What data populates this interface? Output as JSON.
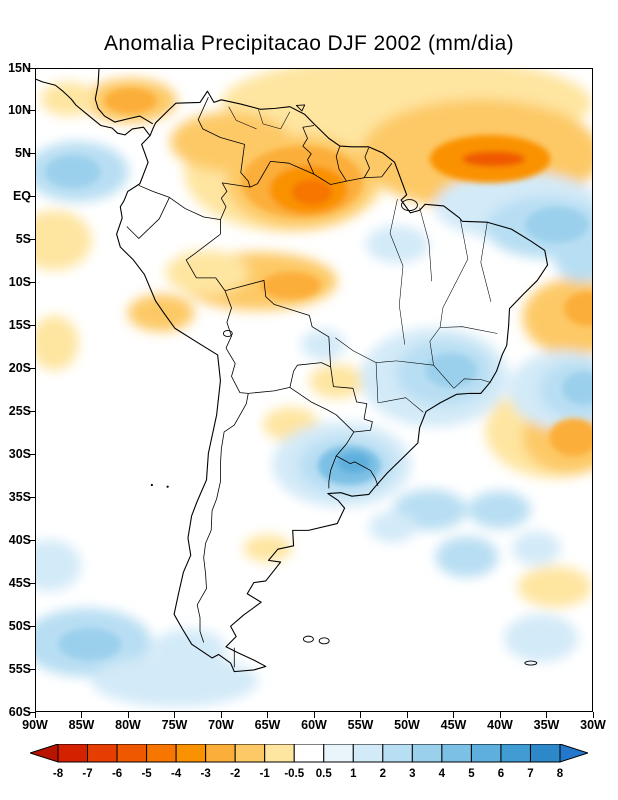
{
  "chart_data": {
    "type": "heatmap",
    "subtype": "filled-contour-anomaly-map",
    "title": "Anomalia Precipitacao DJF 2002 (mm/dia)",
    "variable": "Precipitation anomaly",
    "season": "DJF 2002",
    "units": "mm/dia",
    "region": "South America and adjacent oceans",
    "grid": false,
    "x_axis": {
      "ticks": [
        "90W",
        "85W",
        "80W",
        "75W",
        "70W",
        "65W",
        "60W",
        "55W",
        "50W",
        "45W",
        "40W",
        "35W",
        "30W"
      ],
      "range_deg_lon": [
        -90,
        -30
      ]
    },
    "y_axis": {
      "ticks": [
        "15N",
        "10N",
        "5N",
        "EQ",
        "5S",
        "10S",
        "15S",
        "20S",
        "25S",
        "30S",
        "35S",
        "40S",
        "45S",
        "50S",
        "55S",
        "60S"
      ],
      "range_deg_lat": [
        15,
        -60
      ]
    },
    "colorbar": {
      "tick_labels": [
        "-8",
        "-7",
        "-6",
        "-5",
        "-4",
        "-3",
        "-2",
        "-1",
        "-0.5",
        "0.5",
        "1",
        "2",
        "3",
        "4",
        "5",
        "6",
        "7",
        "8"
      ],
      "levels": [
        -8,
        -7,
        -6,
        -5,
        -4,
        -3,
        -2,
        -1,
        -0.5,
        0.5,
        1,
        2,
        3,
        4,
        5,
        6,
        7,
        8
      ],
      "colors": [
        "#b81400",
        "#d42100",
        "#e63e00",
        "#f05800",
        "#f67600",
        "#fa9200",
        "#fcae3a",
        "#fdc966",
        "#fee5a0",
        "#ffffff",
        "#e9f4fb",
        "#d3eaf8",
        "#b8def3",
        "#9bd0ec",
        "#7cc0e5",
        "#5eafdd",
        "#419cd3",
        "#2c88c8",
        "#2478cc"
      ],
      "colors_note": "first and last colors are the out-of-range arrow ends (< -8 and > +8)"
    },
    "features": [
      {
        "anomaly": "dry",
        "area": "tropical North Atlantic off the Guianas",
        "center": "4N 41W",
        "peak_mm_dia": -5
      },
      {
        "anomaly": "dry",
        "area": "eastern Venezuela, Guianas and far northern Brazil",
        "center": "1N 61W",
        "peak_mm_dia": -4
      },
      {
        "anomaly": "dry",
        "area": "band near 10S across southern Amazonia into Peru",
        "center": "10S 65W",
        "peak_mm_dia": -2
      },
      {
        "anomaly": "dry",
        "area": "northern Colombia / Caribbean coast",
        "center": "11N 80W",
        "peak_mm_dia": -2
      },
      {
        "anomaly": "dry",
        "area": "subtropical South Atlantic",
        "center": "28S 33W",
        "peak_mm_dia": -2
      },
      {
        "anomaly": "dry",
        "area": "Atlantic near right edge around 13S",
        "center": "13S 31W",
        "peak_mm_dia": -2
      },
      {
        "anomaly": "wet",
        "area": "Uruguay and far southern Brazil",
        "center": "31S 56W",
        "peak_mm_dia": 4
      },
      {
        "anomaly": "wet",
        "area": "southeastern Brazil",
        "center": "20S 46W",
        "peak_mm_dia": 2
      },
      {
        "anomaly": "wet",
        "area": "equatorial Atlantic off northeastern Brazil",
        "center": "3S 34W",
        "peak_mm_dia": 2
      },
      {
        "anomaly": "wet",
        "area": "Atlantic at right edge near 22S",
        "center": "22S 31W",
        "peak_mm_dia": 2
      },
      {
        "anomaly": "wet",
        "area": "eastern Pacific off Colombia",
        "center": "3N 86W",
        "peak_mm_dia": 2
      },
      {
        "anomaly": "wet",
        "area": "southeast Pacific near 52S and along southern edge",
        "center": "52S 84W",
        "peak_mm_dia": 1
      },
      {
        "anomaly": "neutral",
        "area": "central Amazonia, Chile and interior Argentina",
        "center": "",
        "peak_mm_dia": 0
      }
    ]
  }
}
